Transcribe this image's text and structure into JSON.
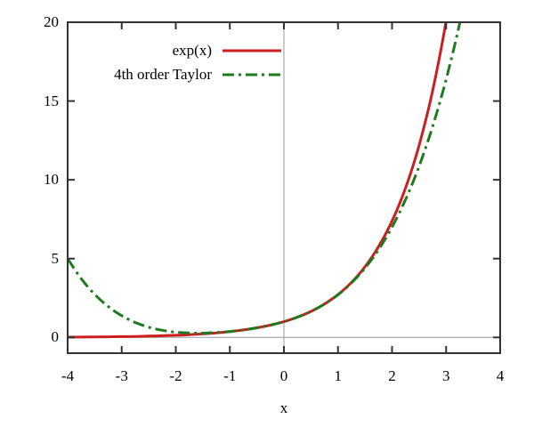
{
  "chart_data": {
    "type": "line",
    "title": "",
    "xlabel": "x",
    "ylabel": "",
    "xlim": [
      -4,
      4
    ],
    "ylim": [
      -1,
      20
    ],
    "x_ticks": [
      -4,
      -3,
      -2,
      -1,
      0,
      1,
      2,
      3,
      4
    ],
    "y_ticks": [
      0,
      5,
      10,
      15,
      20
    ],
    "grid": false,
    "zeroaxis": true,
    "legend_position": "inside-top-center",
    "x": [
      -4,
      -3.75,
      -3.5,
      -3.25,
      -3,
      -2.75,
      -2.5,
      -2.25,
      -2,
      -1.75,
      -1.5,
      -1.25,
      -1,
      -0.75,
      -0.5,
      -0.25,
      0,
      0.25,
      0.5,
      0.75,
      1,
      1.25,
      1.5,
      1.75,
      2,
      2.25,
      2.5,
      2.75,
      3,
      3.25,
      3.5
    ],
    "series": [
      {
        "name": "exp(x)",
        "color": "#cc1e1e",
        "style": "solid",
        "values": [
          0.018,
          0.024,
          0.03,
          0.039,
          0.05,
          0.064,
          0.082,
          0.105,
          0.135,
          0.174,
          0.223,
          0.287,
          0.368,
          0.472,
          0.607,
          0.779,
          1.0,
          1.284,
          1.649,
          2.117,
          2.718,
          3.49,
          4.482,
          5.755,
          7.389,
          9.488,
          12.182,
          15.643,
          20.086,
          25.79,
          33.115
        ]
      },
      {
        "name": "4th order Taylor",
        "color": "#1e7a1e",
        "style": "dash-dot",
        "values": [
          5.0,
          3.732,
          2.732,
          1.958,
          1.375,
          0.948,
          0.648,
          0.451,
          0.333,
          0.279,
          0.273,
          0.307,
          0.375,
          0.474,
          0.607,
          0.779,
          1.0,
          1.284,
          1.648,
          2.115,
          2.708,
          3.458,
          4.398,
          5.565,
          7.0,
          8.748,
          10.857,
          13.38,
          16.375,
          19.902,
          24.023
        ]
      }
    ],
    "colors": {
      "border": "#333333",
      "zeroaxis": "#999999",
      "text": "#000000"
    }
  }
}
